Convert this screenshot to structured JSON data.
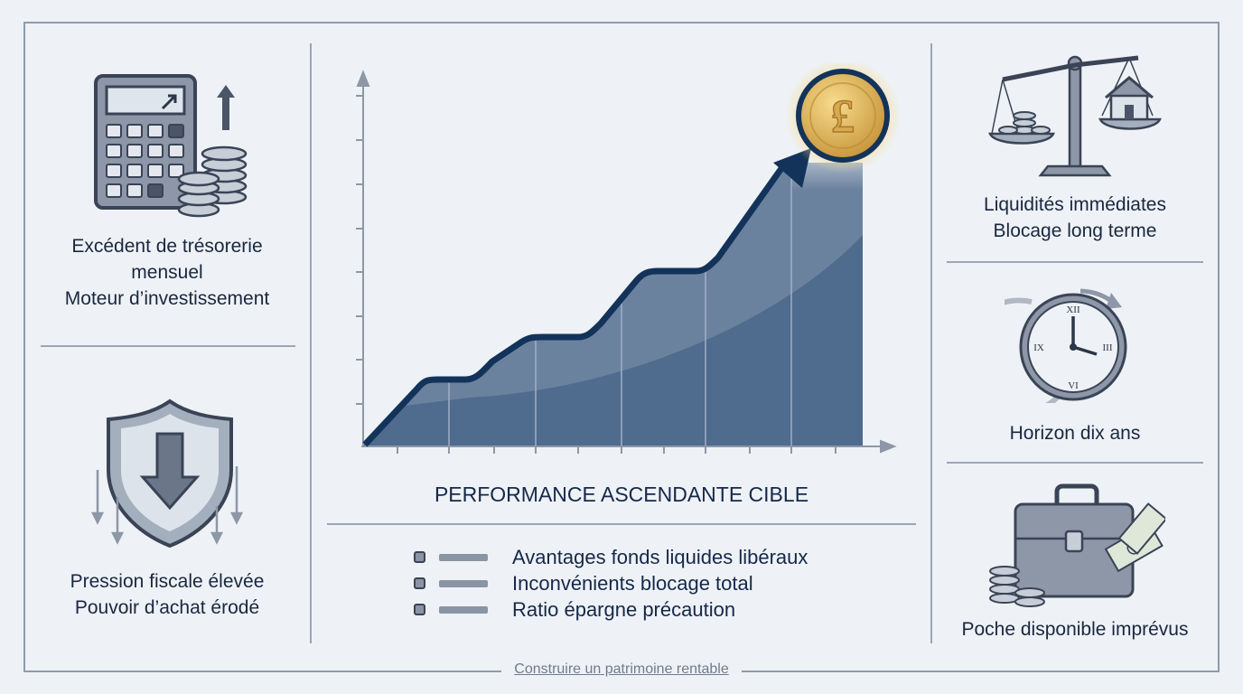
{
  "left": {
    "top_label": [
      "Excédent de trésorerie",
      "mensuel",
      "Moteur d’investissement"
    ],
    "bottom_label": [
      "Pression fiscale élevée",
      "Pouvoir d’achat érodé"
    ],
    "icons": [
      "calculator-coins-icon",
      "shield-down-arrow-icon"
    ]
  },
  "center": {
    "title": "PERFORMANCE ASCENDANTE CIBLE",
    "coin_symbol": "£",
    "legend": [
      "Avantages fonds liquides libéraux",
      "Inconvénients blocage total",
      "Ratio épargne précaution"
    ]
  },
  "right": {
    "top_label": [
      "Liquidités immédiates",
      "Blocage long terme"
    ],
    "middle_label": "Horizon dix ans",
    "bottom_label": "Poche disponible imprévus",
    "icons": [
      "balance-scale-icon",
      "clock-icon",
      "briefcase-money-icon"
    ]
  },
  "footer": "Construire un patrimoine rentable",
  "colors": {
    "navy": "#1c3a63",
    "fill": "#4f6b8d",
    "gold": "#e0b450",
    "line": "#9aa6b8"
  }
}
